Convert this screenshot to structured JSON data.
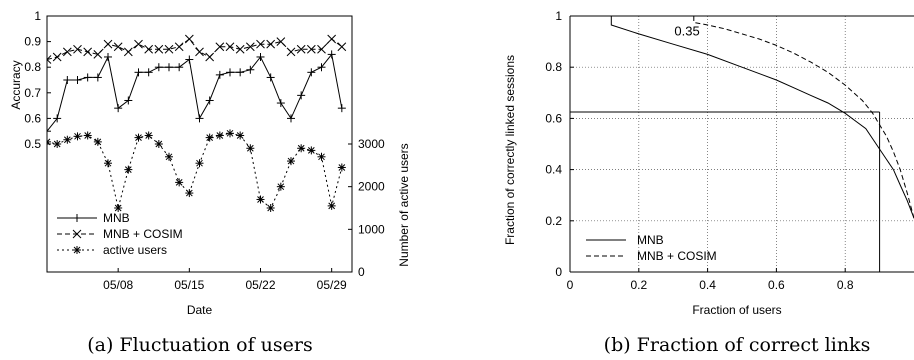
{
  "chart_data": [
    {
      "type": "line",
      "caption": "(a) Fluctuation of users",
      "xlabel": "Date",
      "ylabel": "Accuracy",
      "ylabel_right": "Number of active users",
      "x_ticks": [
        "05/08",
        "05/15",
        "05/22",
        "05/29"
      ],
      "y_ticks": [
        "1",
        "0.9",
        "0.8",
        "0.7",
        "0.6",
        "0.5"
      ],
      "y_ticks_right": [
        "3000",
        "2000",
        "1000",
        "0"
      ],
      "xlim": [
        1,
        31
      ],
      "ylim": [
        0.0,
        1.0
      ],
      "ylim_right": [
        0,
        6000
      ],
      "x_tick_days": [
        8,
        15,
        22,
        29
      ],
      "legend": "bottom-left",
      "grid": false,
      "series": [
        {
          "name": "MNB",
          "axis": "left",
          "marker": "plus",
          "dash": "solid",
          "x": [
            1,
            2,
            3,
            4,
            5,
            6,
            7,
            8,
            9,
            10,
            11,
            12,
            13,
            14,
            15,
            16,
            17,
            18,
            19,
            20,
            21,
            22,
            23,
            24,
            25,
            26,
            27,
            28,
            29,
            30
          ],
          "values": [
            0.55,
            0.6,
            0.75,
            0.75,
            0.76,
            0.76,
            0.84,
            0.64,
            0.67,
            0.78,
            0.78,
            0.8,
            0.8,
            0.8,
            0.83,
            0.6,
            0.67,
            0.77,
            0.78,
            0.78,
            0.79,
            0.84,
            0.76,
            0.66,
            0.6,
            0.69,
            0.78,
            0.8,
            0.85,
            0.64
          ]
        },
        {
          "name": "MNB + COSIM",
          "axis": "left",
          "marker": "cross",
          "dash": "dashed",
          "x": [
            1,
            2,
            3,
            4,
            5,
            6,
            7,
            8,
            9,
            10,
            11,
            12,
            13,
            14,
            15,
            16,
            17,
            18,
            19,
            20,
            21,
            22,
            23,
            24,
            25,
            26,
            27,
            28,
            29,
            30
          ],
          "values": [
            0.83,
            0.84,
            0.86,
            0.87,
            0.86,
            0.85,
            0.89,
            0.88,
            0.86,
            0.89,
            0.87,
            0.87,
            0.87,
            0.88,
            0.91,
            0.86,
            0.84,
            0.88,
            0.88,
            0.87,
            0.88,
            0.89,
            0.89,
            0.9,
            0.86,
            0.87,
            0.87,
            0.87,
            0.91,
            0.88
          ]
        },
        {
          "name": "active users",
          "axis": "right",
          "marker": "star",
          "dash": "dotted",
          "x": [
            1,
            2,
            3,
            4,
            5,
            6,
            7,
            8,
            9,
            10,
            11,
            12,
            13,
            14,
            15,
            16,
            17,
            18,
            19,
            20,
            21,
            22,
            23,
            24,
            25,
            26,
            27,
            28,
            29,
            30
          ],
          "values": [
            3050,
            3000,
            3100,
            3180,
            3200,
            3050,
            2550,
            1500,
            2400,
            3150,
            3200,
            3000,
            2700,
            2100,
            1850,
            2550,
            3150,
            3200,
            3250,
            3200,
            2900,
            1700,
            1500,
            2000,
            2600,
            2900,
            2850,
            2700,
            1550,
            2450
          ]
        }
      ]
    },
    {
      "type": "line",
      "caption": "(b) Fraction of correct links",
      "xlabel": "Fraction of users",
      "ylabel": "Fraction of correctly linked sessions",
      "x_ticks": [
        "0",
        "0.2",
        "0.4",
        "0.6",
        "0.8"
      ],
      "y_ticks": [
        "0",
        "0.2",
        "0.4",
        "0.6",
        "0.8",
        "1"
      ],
      "xlim": [
        0,
        1
      ],
      "ylim": [
        0,
        1
      ],
      "grid": true,
      "legend": "bottom-left",
      "annotation": {
        "text": "0.35",
        "x": 0.35,
        "y": 0.94
      },
      "reference_lines": {
        "hline_y": 0.625,
        "vline_x": 0.9
      },
      "series": [
        {
          "name": "MNB",
          "dash": "solid",
          "x": [
            0.12,
            0.12,
            0.2,
            0.3,
            0.4,
            0.5,
            0.6,
            0.65,
            0.7,
            0.75,
            0.8,
            0.83,
            0.86,
            0.88,
            0.9,
            0.92,
            0.94,
            0.96,
            0.98,
            1.0
          ],
          "values": [
            1.0,
            0.965,
            0.93,
            0.89,
            0.85,
            0.8,
            0.75,
            0.72,
            0.69,
            0.66,
            0.62,
            0.59,
            0.56,
            0.52,
            0.48,
            0.44,
            0.4,
            0.34,
            0.28,
            0.21
          ]
        },
        {
          "name": "MNB + COSIM",
          "dash": "dashed",
          "x": [
            0.36,
            0.36,
            0.4,
            0.45,
            0.5,
            0.55,
            0.6,
            0.65,
            0.7,
            0.75,
            0.8,
            0.85,
            0.88,
            0.9,
            0.92,
            0.94,
            0.96,
            0.98,
            1.0
          ],
          "values": [
            1.0,
            0.975,
            0.965,
            0.95,
            0.93,
            0.91,
            0.885,
            0.855,
            0.82,
            0.78,
            0.73,
            0.67,
            0.62,
            0.575,
            0.53,
            0.47,
            0.4,
            0.31,
            0.21
          ]
        }
      ]
    }
  ]
}
